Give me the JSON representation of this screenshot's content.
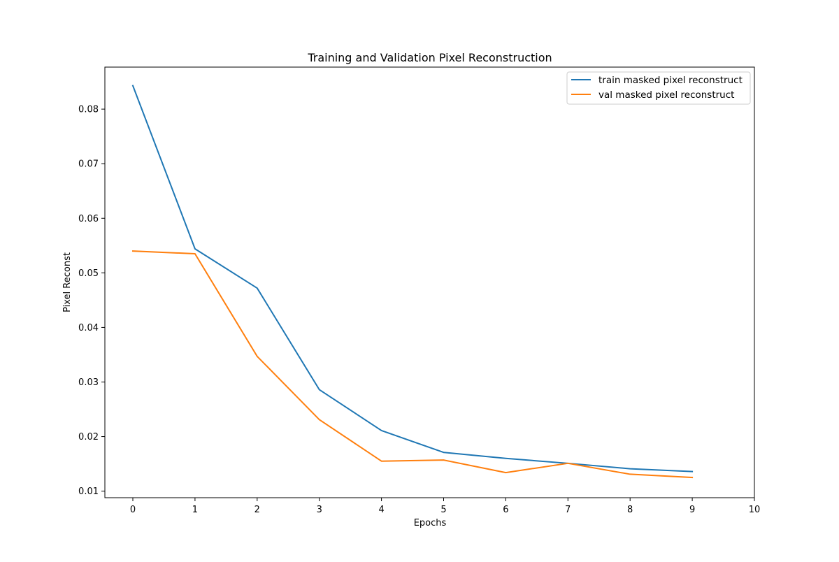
{
  "chart_data": {
    "type": "line",
    "title": "Training and Validation Pixel Reconstruction",
    "xlabel": "Epochs",
    "ylabel": "Pixel Reconst",
    "xlim": [
      -0.45,
      10
    ],
    "ylim": [
      0.0088,
      0.0877
    ],
    "x_ticks": [
      0,
      1,
      2,
      3,
      4,
      5,
      6,
      7,
      8,
      9,
      10
    ],
    "x_tick_labels": [
      "0",
      "1",
      "2",
      "3",
      "4",
      "5",
      "6",
      "7",
      "8",
      "9",
      "10"
    ],
    "y_ticks": [
      0.01,
      0.02,
      0.03,
      0.04,
      0.05,
      0.06,
      0.07,
      0.08
    ],
    "y_tick_labels": [
      "0.01",
      "0.02",
      "0.03",
      "0.04",
      "0.05",
      "0.06",
      "0.07",
      "0.08"
    ],
    "grid": false,
    "legend_position": "top-right",
    "x": [
      0,
      1,
      2,
      3,
      4,
      5,
      6,
      7,
      8,
      9
    ],
    "series": [
      {
        "name": "train masked pixel reconstruct",
        "color": "#1f77b4",
        "values": [
          0.0843,
          0.0544,
          0.0472,
          0.0286,
          0.0211,
          0.0171,
          0.016,
          0.0151,
          0.0141,
          0.0136
        ]
      },
      {
        "name": "val masked pixel reconstruct",
        "color": "#ff7f0e",
        "values": [
          0.054,
          0.0535,
          0.0347,
          0.0231,
          0.0155,
          0.0157,
          0.0134,
          0.0151,
          0.0131,
          0.0125
        ]
      }
    ]
  }
}
